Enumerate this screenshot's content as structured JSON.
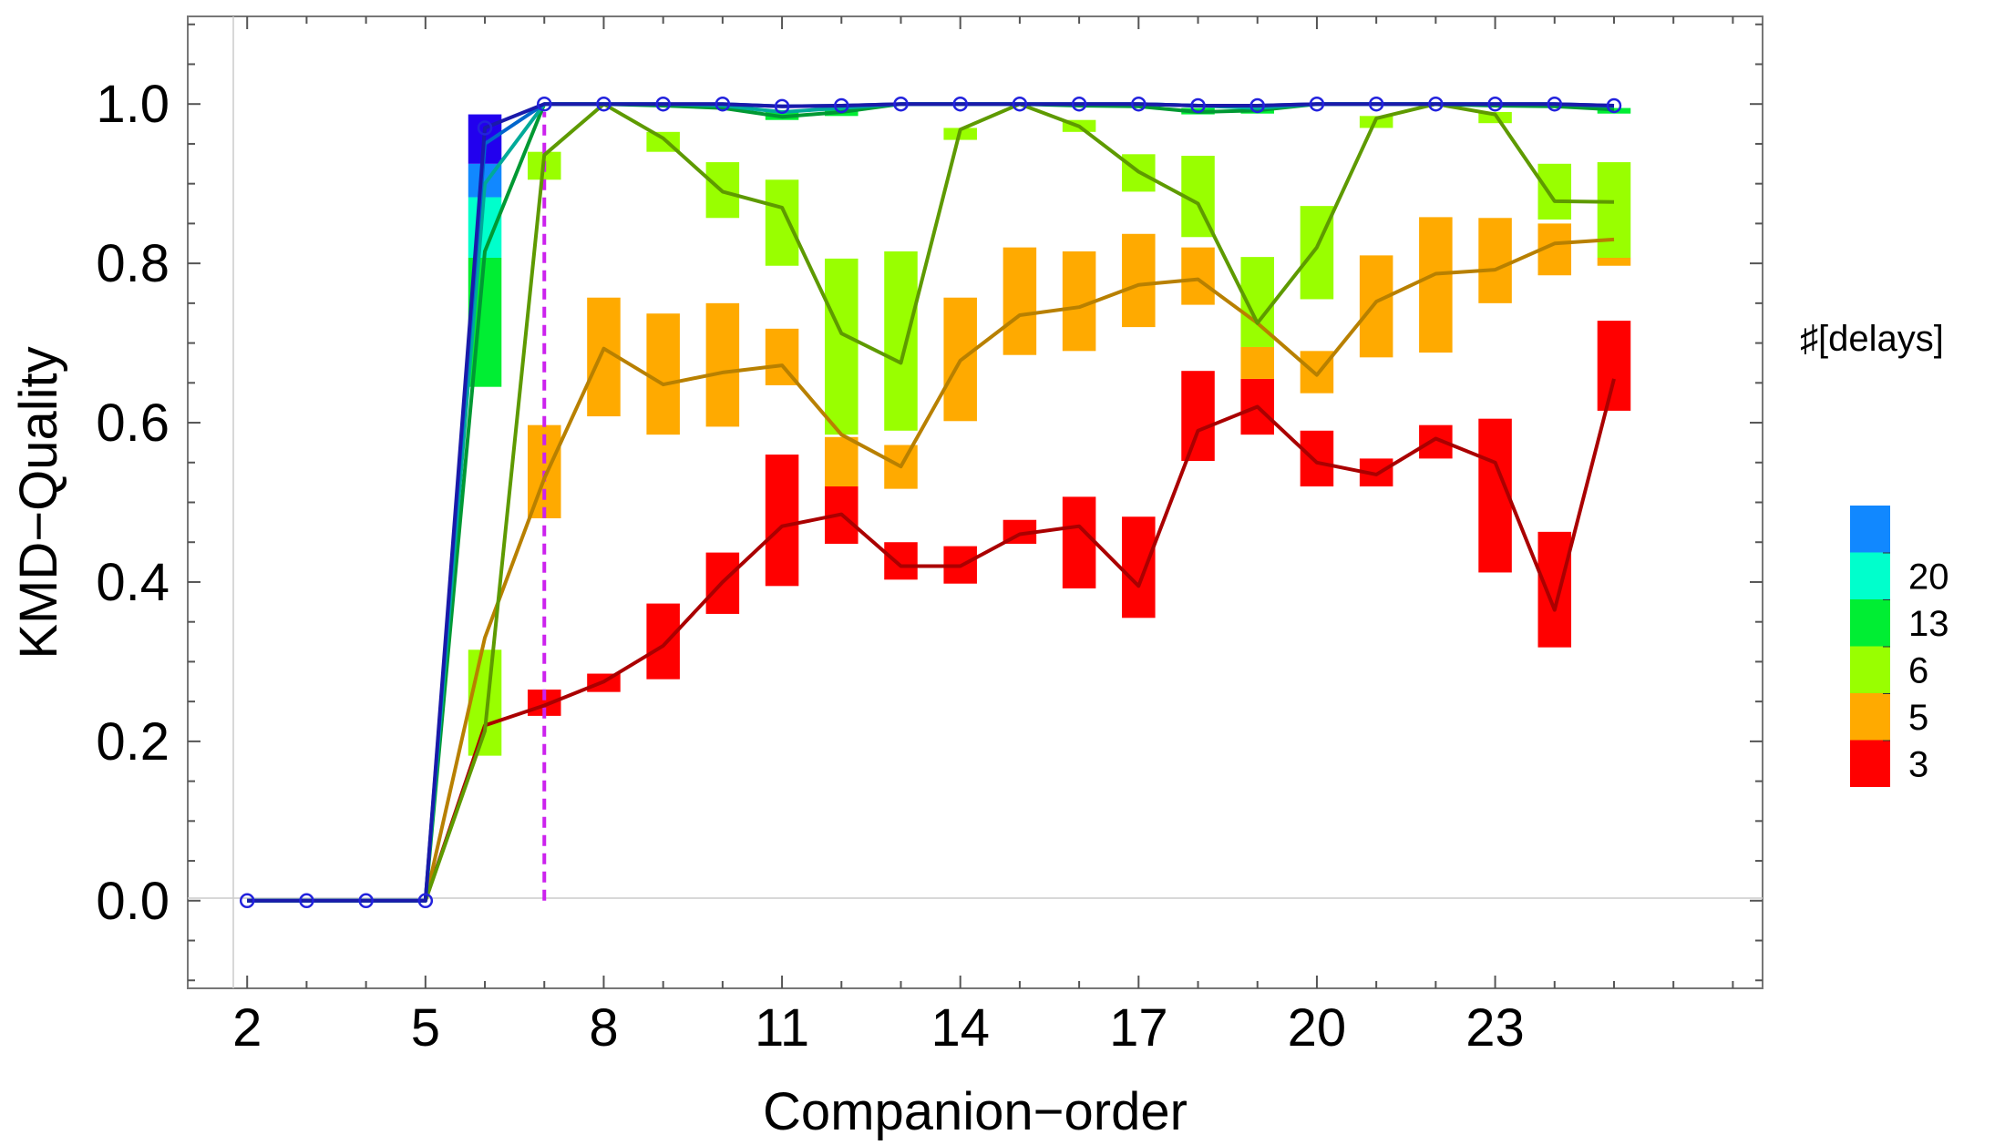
{
  "chart_data": {
    "type": "line",
    "xlabel": "Companion−order",
    "ylabel": "KMD−Quality",
    "xlim": [
      1,
      27.5
    ],
    "ylim": [
      -0.11,
      1.11
    ],
    "xticks": [
      2,
      5,
      8,
      11,
      14,
      17,
      20,
      23
    ],
    "yticks": [
      0.0,
      0.2,
      0.4,
      0.6,
      0.8,
      1.0
    ],
    "y_tick_labels": [
      "0.0",
      "0.2",
      "0.4",
      "0.6",
      "0.8",
      "1.0"
    ],
    "reference_line": {
      "x": 7,
      "y_from": 0,
      "y_to": 0.99,
      "color": "#cc22ee",
      "style": "dashed"
    },
    "legend": {
      "title": "♯[delays]",
      "placement": "right",
      "colorbar": [
        {
          "color": "#ff0000",
          "label": "3"
        },
        {
          "color": "#ffaa00",
          "label": "5"
        },
        {
          "color": "#99ff00",
          "label": "6"
        },
        {
          "color": "#00ee33",
          "label": "13"
        },
        {
          "color": "#00ffcc",
          "label": "20"
        },
        {
          "color": "#1188ff",
          "label": ""
        }
      ]
    },
    "series": [
      {
        "color": "#aa0000",
        "box_color": "#ff0000",
        "points": [
          [
            2,
            0
          ],
          [
            3,
            0
          ],
          [
            4,
            0
          ],
          [
            5,
            0
          ],
          [
            6,
            0.22
          ],
          [
            7,
            0.245
          ],
          [
            8,
            0.275
          ],
          [
            9,
            0.32
          ],
          [
            10,
            0.4
          ],
          [
            11,
            0.47
          ],
          [
            12,
            0.485
          ],
          [
            13,
            0.42
          ],
          [
            14,
            0.42
          ],
          [
            15,
            0.46
          ],
          [
            16,
            0.47
          ],
          [
            17,
            0.395
          ],
          [
            18,
            0.59
          ],
          [
            19,
            0.62
          ],
          [
            20,
            0.55
          ],
          [
            21,
            0.535
          ],
          [
            22,
            0.58
          ],
          [
            23,
            0.55
          ],
          [
            24,
            0.365
          ],
          [
            25,
            0.655
          ]
        ],
        "boxes": [
          [
            7,
            0.232,
            0.265
          ],
          [
            8,
            0.262,
            0.285
          ],
          [
            9,
            0.278,
            0.373
          ],
          [
            10,
            0.36,
            0.437
          ],
          [
            11,
            0.395,
            0.56
          ],
          [
            12,
            0.448,
            0.52
          ],
          [
            13,
            0.403,
            0.45
          ],
          [
            14,
            0.398,
            0.445
          ],
          [
            15,
            0.448,
            0.478
          ],
          [
            16,
            0.392,
            0.507
          ],
          [
            17,
            0.355,
            0.482
          ],
          [
            18,
            0.552,
            0.665
          ],
          [
            19,
            0.585,
            0.655
          ],
          [
            20,
            0.52,
            0.59
          ],
          [
            21,
            0.52,
            0.555
          ],
          [
            22,
            0.555,
            0.597
          ],
          [
            23,
            0.412,
            0.605
          ],
          [
            24,
            0.318,
            0.463
          ],
          [
            25,
            0.615,
            0.728
          ]
        ]
      },
      {
        "color": "#b88000",
        "box_color": "#ffaa00",
        "points": [
          [
            2,
            0
          ],
          [
            3,
            0
          ],
          [
            4,
            0
          ],
          [
            5,
            0
          ],
          [
            6,
            0.33
          ],
          [
            7,
            0.53
          ],
          [
            8,
            0.693
          ],
          [
            9,
            0.648
          ],
          [
            10,
            0.663
          ],
          [
            11,
            0.672
          ],
          [
            12,
            0.585
          ],
          [
            13,
            0.545
          ],
          [
            14,
            0.678
          ],
          [
            15,
            0.735
          ],
          [
            16,
            0.745
          ],
          [
            17,
            0.773
          ],
          [
            18,
            0.78
          ],
          [
            19,
            0.725
          ],
          [
            20,
            0.66
          ],
          [
            21,
            0.752
          ],
          [
            22,
            0.787
          ],
          [
            23,
            0.792
          ],
          [
            24,
            0.825
          ],
          [
            25,
            0.83
          ]
        ],
        "boxes": [
          [
            7,
            0.48,
            0.597
          ],
          [
            8,
            0.608,
            0.757
          ],
          [
            9,
            0.585,
            0.737
          ],
          [
            10,
            0.595,
            0.75
          ],
          [
            11,
            0.647,
            0.718
          ],
          [
            12,
            0.52,
            0.582
          ],
          [
            13,
            0.517,
            0.572
          ],
          [
            14,
            0.602,
            0.757
          ],
          [
            15,
            0.685,
            0.82
          ],
          [
            16,
            0.69,
            0.815
          ],
          [
            17,
            0.72,
            0.837
          ],
          [
            18,
            0.748,
            0.82
          ],
          [
            19,
            0.655,
            0.695
          ],
          [
            20,
            0.637,
            0.69
          ],
          [
            21,
            0.682,
            0.81
          ],
          [
            22,
            0.688,
            0.858
          ],
          [
            23,
            0.75,
            0.857
          ],
          [
            24,
            0.785,
            0.85
          ],
          [
            25,
            0.797,
            0.807
          ]
        ]
      },
      {
        "color": "#5e9a00",
        "box_color": "#99ff00",
        "points": [
          [
            2,
            0
          ],
          [
            3,
            0
          ],
          [
            4,
            0
          ],
          [
            5,
            0
          ],
          [
            6,
            0.213
          ],
          [
            7,
            0.936
          ],
          [
            8,
            1.0
          ],
          [
            9,
            0.957
          ],
          [
            10,
            0.89
          ],
          [
            11,
            0.87
          ],
          [
            12,
            0.712
          ],
          [
            13,
            0.675
          ],
          [
            14,
            0.968
          ],
          [
            15,
            1.0
          ],
          [
            16,
            0.972
          ],
          [
            17,
            0.915
          ],
          [
            18,
            0.875
          ],
          [
            19,
            0.725
          ],
          [
            20,
            0.82
          ],
          [
            21,
            0.982
          ],
          [
            22,
            1.0
          ],
          [
            23,
            0.987
          ],
          [
            24,
            0.878
          ],
          [
            25,
            0.877
          ]
        ],
        "boxes": [
          [
            6,
            0.182,
            0.315
          ],
          [
            7,
            0.905,
            0.94
          ],
          [
            9,
            0.94,
            0.965
          ],
          [
            10,
            0.857,
            0.927
          ],
          [
            11,
            0.797,
            0.905
          ],
          [
            12,
            0.585,
            0.806
          ],
          [
            13,
            0.59,
            0.815
          ],
          [
            14,
            0.955,
            0.97
          ],
          [
            16,
            0.965,
            0.98
          ],
          [
            17,
            0.89,
            0.937
          ],
          [
            18,
            0.833,
            0.935
          ],
          [
            19,
            0.695,
            0.808
          ],
          [
            20,
            0.755,
            0.872
          ],
          [
            21,
            0.97,
            0.985
          ],
          [
            23,
            0.976,
            0.99
          ],
          [
            24,
            0.855,
            0.925
          ],
          [
            25,
            0.807,
            0.927
          ]
        ]
      },
      {
        "color": "#009933",
        "box_color": "#00ee33",
        "points": [
          [
            2,
            0
          ],
          [
            3,
            0
          ],
          [
            4,
            0
          ],
          [
            5,
            0
          ],
          [
            6,
            0.815
          ],
          [
            7,
            1.0
          ],
          [
            8,
            1.0
          ],
          [
            9,
            0.998
          ],
          [
            10,
            0.995
          ],
          [
            11,
            0.984
          ],
          [
            12,
            0.99
          ],
          [
            13,
            1.0
          ],
          [
            14,
            1.0
          ],
          [
            15,
            1.0
          ],
          [
            16,
            0.998
          ],
          [
            17,
            0.997
          ],
          [
            18,
            0.99
          ],
          [
            19,
            0.992
          ],
          [
            20,
            1.0
          ],
          [
            21,
            1.0
          ],
          [
            22,
            1.0
          ],
          [
            23,
            0.998
          ],
          [
            24,
            0.997
          ],
          [
            25,
            0.993
          ]
        ],
        "boxes": [
          [
            6,
            0.645,
            0.807
          ],
          [
            11,
            0.98,
            0.99
          ],
          [
            12,
            0.985,
            0.995
          ],
          [
            18,
            0.987,
            0.995
          ],
          [
            19,
            0.988,
            0.995
          ],
          [
            25,
            0.988,
            0.995
          ]
        ]
      },
      {
        "color": "#00aa99",
        "box_color": "#00ffcc",
        "points": [
          [
            2,
            0
          ],
          [
            3,
            0
          ],
          [
            4,
            0
          ],
          [
            5,
            0
          ],
          [
            6,
            0.9
          ],
          [
            7,
            1.0
          ],
          [
            8,
            1.0
          ],
          [
            9,
            1.0
          ],
          [
            10,
            0.998
          ],
          [
            11,
            0.99
          ],
          [
            12,
            0.995
          ],
          [
            13,
            1.0
          ],
          [
            14,
            1.0
          ],
          [
            15,
            1.0
          ],
          [
            16,
            1.0
          ],
          [
            17,
            1.0
          ],
          [
            18,
            0.998
          ],
          [
            19,
            0.995
          ],
          [
            20,
            1.0
          ],
          [
            21,
            1.0
          ],
          [
            22,
            1.0
          ],
          [
            23,
            1.0
          ],
          [
            24,
            1.0
          ],
          [
            25,
            0.997
          ]
        ],
        "boxes": [
          [
            6,
            0.807,
            0.883
          ]
        ]
      },
      {
        "color": "#0066cc",
        "box_color": "#1188ff",
        "points": [
          [
            2,
            0
          ],
          [
            3,
            0
          ],
          [
            4,
            0
          ],
          [
            5,
            0
          ],
          [
            6,
            0.95
          ],
          [
            7,
            1.0
          ],
          [
            8,
            1.0
          ],
          [
            9,
            1.0
          ],
          [
            10,
            1.0
          ],
          [
            11,
            0.997
          ],
          [
            12,
            0.998
          ],
          [
            13,
            1.0
          ],
          [
            14,
            1.0
          ],
          [
            15,
            1.0
          ],
          [
            16,
            1.0
          ],
          [
            17,
            1.0
          ],
          [
            18,
            0.998
          ],
          [
            19,
            0.998
          ],
          [
            20,
            1.0
          ],
          [
            21,
            1.0
          ],
          [
            22,
            1.0
          ],
          [
            23,
            1.0
          ],
          [
            24,
            1.0
          ],
          [
            25,
            0.998
          ]
        ],
        "boxes": [
          [
            6,
            0.883,
            0.925
          ]
        ]
      },
      {
        "color": "#1a1aaa",
        "box_color": "#2200ee",
        "marker": "open-circle",
        "marker_color": "#2222dd",
        "points": [
          [
            2,
            0
          ],
          [
            3,
            0
          ],
          [
            4,
            0
          ],
          [
            5,
            0
          ],
          [
            6,
            0.97
          ],
          [
            7,
            1.0
          ],
          [
            8,
            1.0
          ],
          [
            9,
            1.0
          ],
          [
            10,
            1.0
          ],
          [
            11,
            0.997
          ],
          [
            12,
            0.998
          ],
          [
            13,
            1.0
          ],
          [
            14,
            1.0
          ],
          [
            15,
            1.0
          ],
          [
            16,
            1.0
          ],
          [
            17,
            1.0
          ],
          [
            18,
            0.998
          ],
          [
            19,
            0.998
          ],
          [
            20,
            1.0
          ],
          [
            21,
            1.0
          ],
          [
            22,
            1.0
          ],
          [
            23,
            1.0
          ],
          [
            24,
            1.0
          ],
          [
            25,
            0.998
          ]
        ],
        "boxes": [
          [
            6,
            0.925,
            0.987
          ]
        ]
      }
    ]
  }
}
